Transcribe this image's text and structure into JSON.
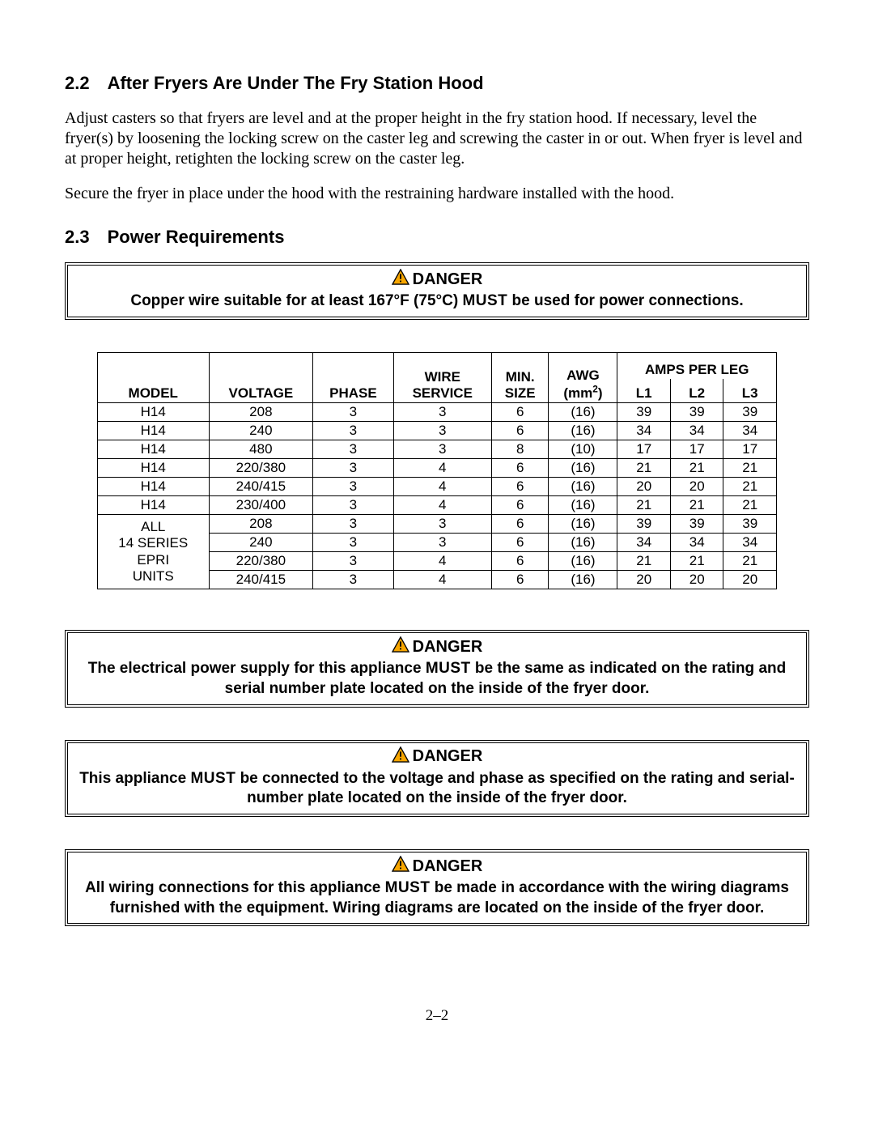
{
  "section22": {
    "num": "2.2",
    "title": "After Fryers Are Under The Fry Station Hood",
    "para1": "Adjust casters so that fryers are level and at the proper height in the fry station hood.  If necessary, level the fryer(s) by loosening the locking screw on the caster leg and screwing the caster in or out.  When fryer is level and at proper height, retighten the locking screw on the caster leg.",
    "para2": "Secure the fryer in place under the hood with the restraining hardware installed with the hood."
  },
  "section23": {
    "num": "2.3",
    "title": "Power Requirements"
  },
  "danger_label": "DANGER",
  "danger1": {
    "pre": "Copper wire suitable for at least 167°F (75°C) ",
    "must": "MUST",
    "post": " be used for power connections."
  },
  "danger2": {
    "pre": "The electrical power supply for this appliance ",
    "must": "MUST",
    "post": " be the same as indicated on the rating and serial number plate located on the inside of the fryer door."
  },
  "danger3": {
    "pre": "This appliance ",
    "must": "MUST",
    "post": " be connected to the voltage and phase as specified on the rating and serial-number plate located on the inside of the fryer door."
  },
  "danger4": {
    "pre": "All wiring connections for this appliance ",
    "must": "MUST",
    "post": " be made in accordance with the wiring diagrams furnished with the equipment.  Wiring diagrams are located on the inside of the fryer door."
  },
  "table": {
    "headers": {
      "model": "MODEL",
      "voltage": "VOLTAGE",
      "phase": "PHASE",
      "wire_top": "WIRE",
      "wire_bottom": "SERVICE",
      "min_top": "MIN.",
      "min_bottom": "SIZE",
      "awg_top": "AWG",
      "awg_bottom_prefix": "(mm",
      "awg_bottom_suffix": ")",
      "amps": "AMPS PER LEG",
      "l1": "L1",
      "l2": "L2",
      "l3": "L3"
    },
    "model_group_lines": [
      "ALL",
      "14 SERIES",
      "EPRI",
      "UNITS"
    ],
    "rows": [
      {
        "model": "H14",
        "voltage": "208",
        "phase": "3",
        "wire": "3",
        "min": "6",
        "awg": "(16)",
        "l1": "39",
        "l2": "39",
        "l3": "39"
      },
      {
        "model": "H14",
        "voltage": "240",
        "phase": "3",
        "wire": "3",
        "min": "6",
        "awg": "(16)",
        "l1": "34",
        "l2": "34",
        "l3": "34"
      },
      {
        "model": "H14",
        "voltage": "480",
        "phase": "3",
        "wire": "3",
        "min": "8",
        "awg": "(10)",
        "l1": "17",
        "l2": "17",
        "l3": "17"
      },
      {
        "model": "H14",
        "voltage": "220/380",
        "phase": "3",
        "wire": "4",
        "min": "6",
        "awg": "(16)",
        "l1": "21",
        "l2": "21",
        "l3": "21"
      },
      {
        "model": "H14",
        "voltage": "240/415",
        "phase": "3",
        "wire": "4",
        "min": "6",
        "awg": "(16)",
        "l1": "20",
        "l2": "20",
        "l3": "21"
      },
      {
        "model": "H14",
        "voltage": "230/400",
        "phase": "3",
        "wire": "4",
        "min": "6",
        "awg": "(16)",
        "l1": "21",
        "l2": "21",
        "l3": "21"
      },
      {
        "voltage": "208",
        "phase": "3",
        "wire": "3",
        "min": "6",
        "awg": "(16)",
        "l1": "39",
        "l2": "39",
        "l3": "39"
      },
      {
        "voltage": "240",
        "phase": "3",
        "wire": "3",
        "min": "6",
        "awg": "(16)",
        "l1": "34",
        "l2": "34",
        "l3": "34"
      },
      {
        "voltage": "220/380",
        "phase": "3",
        "wire": "4",
        "min": "6",
        "awg": "(16)",
        "l1": "21",
        "l2": "21",
        "l3": "21"
      },
      {
        "voltage": "240/415",
        "phase": "3",
        "wire": "4",
        "min": "6",
        "awg": "(16)",
        "l1": "20",
        "l2": "20",
        "l3": "20"
      }
    ]
  },
  "page_number": "2–2",
  "colors": {
    "warning_fill": "#f7a600",
    "text": "#000000",
    "background": "#ffffff"
  }
}
